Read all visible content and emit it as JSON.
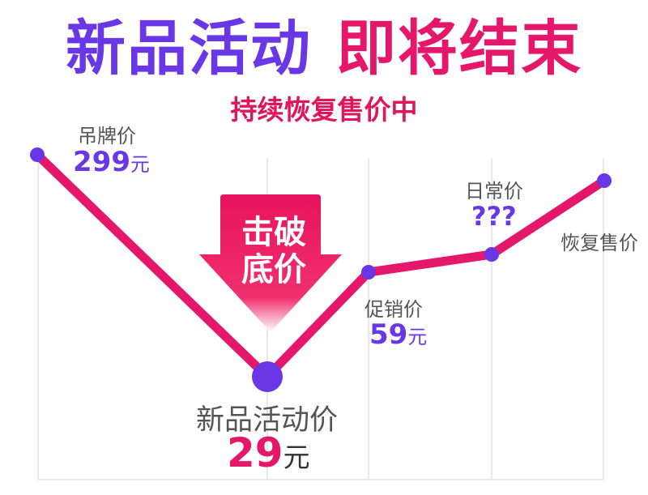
{
  "title": {
    "part1": "新品活动",
    "part2": "即将结束"
  },
  "subtitle": "持续恢复售价中",
  "badge": {
    "line1": "击破",
    "line2": "底价"
  },
  "points": [
    {
      "label": "吊牌价",
      "value": "299",
      "unit": "元"
    },
    {
      "label": "新品活动价",
      "value": "29",
      "unit": "元"
    },
    {
      "label": "促销价",
      "value": "59",
      "unit": "元"
    },
    {
      "label": "日常价",
      "value": "???"
    },
    {
      "label": "恢复售价"
    }
  ],
  "colors": {
    "purple": "#6a37e6",
    "pink": "#e5176a"
  }
}
